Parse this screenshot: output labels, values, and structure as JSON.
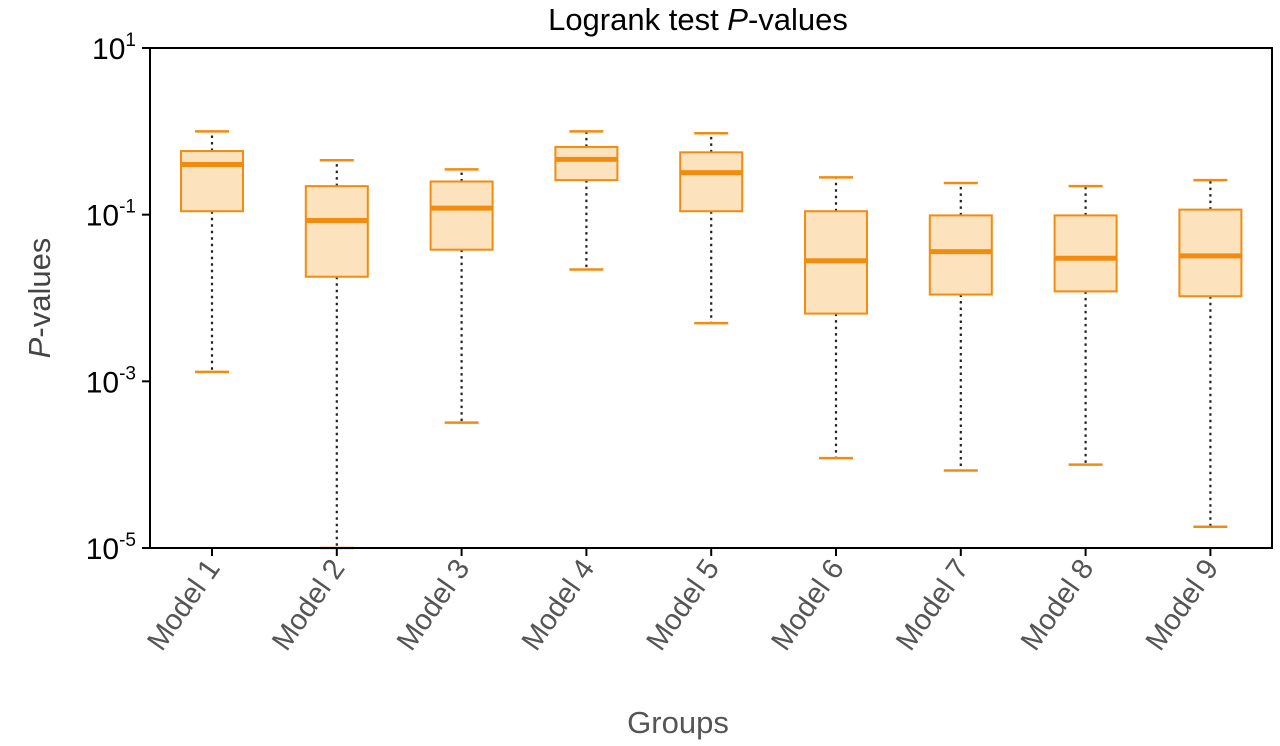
{
  "chart_data": {
    "type": "box",
    "title_parts": [
      "Logrank test ",
      "P",
      "-values"
    ],
    "xlabel": "Groups",
    "ylabel_parts": [
      "P",
      "-values"
    ],
    "y_scale": "log",
    "ylim": [
      1e-05,
      10
    ],
    "y_ticks": [
      {
        "value": 10,
        "base": "10",
        "exp": "1"
      },
      {
        "value": 0.1,
        "base": "10",
        "exp": "-1"
      },
      {
        "value": 0.001,
        "base": "10",
        "exp": "-3"
      },
      {
        "value": 1e-05,
        "base": "10",
        "exp": "-5"
      }
    ],
    "grid": false,
    "colors": {
      "box_fill": "#fde3bd",
      "box_edge": "#f28c10",
      "median": "#f28c10",
      "whisker": "#222222",
      "axis": "#000000"
    },
    "categories": [
      "Model 1",
      "Model 2",
      "Model 3",
      "Model 4",
      "Model 5",
      "Model 6",
      "Model 7",
      "Model 8",
      "Model 9"
    ],
    "boxes": [
      {
        "whisker_low": 0.0013,
        "q1": 0.11,
        "median": 0.4,
        "q3": 0.58,
        "whisker_high": 1.0
      },
      {
        "whisker_low": 1e-05,
        "q1": 0.018,
        "median": 0.085,
        "q3": 0.22,
        "whisker_high": 0.45
      },
      {
        "whisker_low": 0.00032,
        "q1": 0.038,
        "median": 0.12,
        "q3": 0.25,
        "whisker_high": 0.35
      },
      {
        "whisker_low": 0.022,
        "q1": 0.26,
        "median": 0.46,
        "q3": 0.65,
        "whisker_high": 1.0
      },
      {
        "whisker_low": 0.005,
        "q1": 0.11,
        "median": 0.32,
        "q3": 0.56,
        "whisker_high": 0.95
      },
      {
        "whisker_low": 0.00012,
        "q1": 0.0065,
        "median": 0.028,
        "q3": 0.11,
        "whisker_high": 0.28
      },
      {
        "whisker_low": 8.5e-05,
        "q1": 0.011,
        "median": 0.036,
        "q3": 0.098,
        "whisker_high": 0.24
      },
      {
        "whisker_low": 0.0001,
        "q1": 0.012,
        "median": 0.03,
        "q3": 0.098,
        "whisker_high": 0.22
      },
      {
        "whisker_low": 1.8e-05,
        "q1": 0.0105,
        "median": 0.032,
        "q3": 0.115,
        "whisker_high": 0.26
      }
    ]
  }
}
